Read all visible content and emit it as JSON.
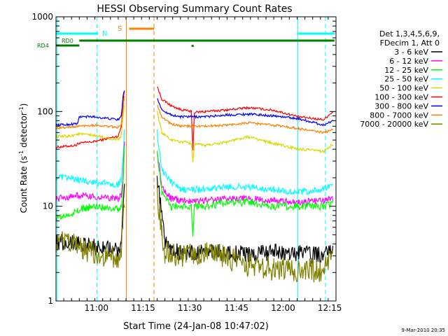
{
  "chart_data": {
    "type": "line",
    "title": "HESSI Observing Summary Count Rates",
    "xlabel_prefix": "Start Time (",
    "xlabel_date": "24-Jan-08 10:47:02",
    "xlabel_suffix": ")",
    "ylabel_main": "Count Rate (s",
    "ylabel_sup1": "-1",
    "ylabel_mid": " detector",
    "ylabel_sup2": "-1",
    "ylabel_end": ")",
    "x_range_min": [
      0,
      81
    ],
    "y_scale": "log",
    "ylim": [
      1,
      1000
    ],
    "y_tick_labels": [
      {
        "v": 1,
        "label": "1"
      },
      {
        "v": 10,
        "label": "10"
      },
      {
        "v": 100,
        "label": "100"
      },
      {
        "v": 1000,
        "label": "1000"
      }
    ],
    "x_tick_labels": [
      {
        "m": 13,
        "label": "11:00"
      },
      {
        "m": 28,
        "label": "11:15"
      },
      {
        "m": 43,
        "label": "11:30"
      },
      {
        "m": 58,
        "label": "11:45"
      },
      {
        "m": 73,
        "label": "12:00"
      },
      {
        "m": 88,
        "label": "12:15"
      }
    ],
    "legend": {
      "header": [
        "Det 1,3,4,5,6,9,",
        "FDecim 1, Att 0"
      ],
      "entries": [
        {
          "label": "3 - 6 keV",
          "color": "#000000"
        },
        {
          "label": "6 - 12 keV",
          "color": "#ff00ff"
        },
        {
          "label": "12 - 25 keV",
          "color": "#00ff00"
        },
        {
          "label": "25 - 50 keV",
          "color": "#00ffff"
        },
        {
          "label": "50 - 100 keV",
          "color": "#d8d800"
        },
        {
          "label": "100 - 300 keV",
          "color": "#ff0000"
        },
        {
          "label": "300 - 800 keV",
          "color": "#0000ff"
        },
        {
          "label": "800 - 7000 keV",
          "color": "#ff8000"
        },
        {
          "label": "7000 - 20000 keV",
          "color": "#808000"
        }
      ]
    },
    "annotations": {
      "N": {
        "label": "N",
        "color": "#00ffff"
      },
      "S": {
        "label": "S",
        "color": "#ff8000"
      },
      "RD0": {
        "label": "RD0",
        "color": "#008000"
      },
      "RD4": {
        "label": "RD4",
        "color": "#008000"
      }
    },
    "series": [
      {
        "label": "100 - 300 keV",
        "color": "#ff0000",
        "noise": 0.012,
        "x": [
          0,
          6.5,
          7,
          12,
          20,
          21,
          21.5,
          22,
          22.3,
          32,
          32.5,
          34,
          37,
          40,
          43.5,
          44,
          44.5,
          48,
          55,
          62,
          70,
          78,
          86,
          89
        ],
        "y": [
          42,
          44,
          46,
          48,
          55,
          70,
          130,
          165,
          0,
          0,
          185,
          135,
          115,
          105,
          100,
          40,
          98,
          100,
          104,
          110,
          103,
          88,
          82,
          100
        ]
      },
      {
        "label": "300 - 800 keV",
        "color": "#0000ff",
        "noise": 0.012,
        "x": [
          0,
          4,
          7,
          7.5,
          12,
          20,
          21,
          21.5,
          22,
          22.3,
          32,
          32.5,
          34,
          37,
          40,
          48,
          55,
          62,
          70,
          78,
          86,
          89
        ],
        "y": [
          72,
          73,
          75,
          88,
          88,
          82,
          90,
          140,
          170,
          0,
          0,
          140,
          105,
          92,
          88,
          88,
          92,
          94,
          90,
          84,
          72,
          80
        ]
      },
      {
        "label": "800 - 7000 keV",
        "color": "#ff8000",
        "noise": 0.012,
        "x": [
          0,
          4,
          7,
          12,
          20,
          21,
          21.5,
          22,
          22.3,
          32,
          32.5,
          34,
          37,
          40,
          48,
          55,
          62,
          70,
          78,
          86,
          89
        ],
        "y": [
          67,
          68,
          70,
          72,
          68,
          72,
          100,
          150,
          0,
          0,
          118,
          88,
          74,
          70,
          70,
          72,
          76,
          72,
          66,
          60,
          64
        ]
      },
      {
        "label": "50 - 100 keV",
        "color": "#d8d800",
        "noise": 0.015,
        "x": [
          0,
          4,
          7,
          12,
          20,
          21,
          21.5,
          22,
          22.3,
          32,
          32.5,
          34,
          37,
          40,
          43.5,
          44,
          44.5,
          48,
          55,
          62,
          70,
          78,
          86,
          89
        ],
        "y": [
          54,
          55,
          58,
          56,
          50,
          55,
          85,
          120,
          0,
          0,
          100,
          60,
          50,
          48,
          46,
          30,
          45,
          44,
          48,
          54,
          46,
          40,
          38,
          45
        ]
      },
      {
        "label": "25 - 50 keV",
        "color": "#00ffff",
        "noise": 0.035,
        "x": [
          0,
          4,
          7,
          12,
          20,
          21,
          21.5,
          22,
          22.3,
          32,
          32.5,
          34,
          37,
          40,
          48,
          55,
          62,
          70,
          78,
          86,
          89
        ],
        "y": [
          20,
          20,
          19,
          18,
          17,
          19,
          30,
          60,
          0,
          0,
          60,
          24,
          18,
          15,
          15,
          16,
          16,
          15,
          14,
          15,
          17
        ]
      },
      {
        "label": "6 - 12 keV",
        "color": "#ff00ff",
        "noise": 0.035,
        "x": [
          0,
          4,
          7,
          12,
          20,
          21,
          21.5,
          22,
          22.3,
          32,
          32.5,
          34,
          37,
          40,
          48,
          55,
          62,
          70,
          78,
          86,
          89
        ],
        "y": [
          12,
          12.5,
          13,
          12.5,
          12,
          13,
          20,
          45,
          0,
          0,
          40,
          16,
          12,
          11.5,
          11.5,
          12,
          12,
          11.5,
          11,
          11.5,
          12
        ]
      },
      {
        "label": "12 - 25 keV",
        "color": "#00ff00",
        "noise": 0.04,
        "x": [
          0,
          4,
          7,
          12,
          20,
          21,
          21.5,
          22,
          22.3,
          32,
          32.5,
          34,
          37,
          40,
          43.5,
          44,
          44.5,
          48,
          55,
          62,
          70,
          78,
          86,
          89
        ],
        "y": [
          7.5,
          8,
          9,
          10,
          9.5,
          10,
          16,
          40,
          0,
          0,
          38,
          14,
          10,
          10,
          10,
          5,
          10,
          10,
          11,
          11,
          10,
          10,
          10,
          11
        ]
      },
      {
        "label": "3 - 6 keV",
        "color": "#000000",
        "noise": 0.09,
        "x": [
          0,
          4,
          7,
          12,
          16,
          20,
          21,
          21.5,
          22,
          22.3,
          32,
          32.5,
          34,
          35,
          40,
          48,
          55,
          62,
          70,
          78,
          86,
          89
        ],
        "y": [
          4.2,
          4.2,
          4.2,
          3.8,
          3.6,
          3.4,
          4,
          8,
          15,
          0,
          0,
          20,
          8,
          4,
          3.2,
          3.3,
          3.2,
          3.1,
          3.3,
          3.2,
          3,
          3.5
        ]
      },
      {
        "label": "7000 - 20000 keV",
        "color": "#808000",
        "noise": 0.13,
        "x": [
          0,
          4,
          7,
          12,
          16,
          20,
          21,
          21.5,
          22,
          22.3,
          32,
          32.5,
          34,
          35,
          40,
          48,
          55,
          62,
          70,
          78,
          86,
          89
        ],
        "y": [
          4.2,
          4,
          3.8,
          3.2,
          3.0,
          2.8,
          3.3,
          7,
          12,
          0,
          0,
          15,
          5,
          3.3,
          3,
          3.1,
          2.9,
          2.4,
          2.2,
          2.1,
          2.1,
          2.8
        ]
      }
    ]
  },
  "footer": {
    "timestamp": "9-Mar-2010 20:35"
  }
}
